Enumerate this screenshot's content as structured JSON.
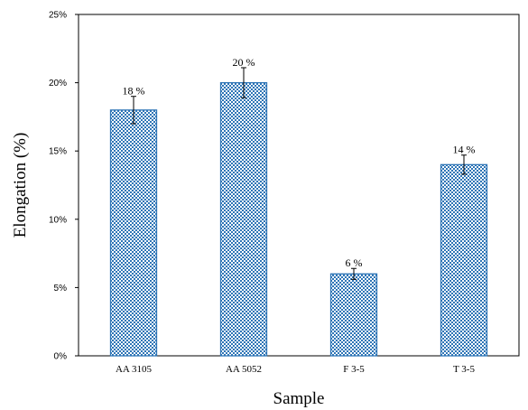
{
  "chart_data": {
    "type": "bar",
    "categories": [
      "AA 3105",
      "AA 5052",
      "F 3-5",
      "T 3-5"
    ],
    "values": [
      18,
      20,
      6,
      14
    ],
    "errors": [
      1.0,
      1.1,
      0.4,
      0.7
    ],
    "data_labels": [
      "18 %",
      "20 %",
      "6 %",
      "14 %"
    ],
    "title": "",
    "xlabel": "Sample",
    "ylabel": "Elongation (%)",
    "ylim": [
      0,
      25
    ],
    "yticks": [
      0,
      5,
      10,
      15,
      20,
      25
    ],
    "ytick_labels": [
      "0%",
      "5%",
      "10%",
      "15%",
      "20%",
      "25%"
    ],
    "grid": false,
    "legend": "none",
    "bar_color": "#2e75b6",
    "bar_pattern": "checkered",
    "frame_color": "#000000"
  }
}
